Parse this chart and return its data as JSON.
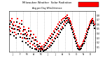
{
  "title": "Milwaukee Weather  Solar Radiation",
  "subtitle": "Avg per Day W/m2/minute",
  "background_color": "#ffffff",
  "plot_bg_color": "#ffffff",
  "grid_color": "#b0b0b0",
  "ylim": [
    0,
    0.9
  ],
  "xlim": [
    0,
    370
  ],
  "legend_color1": "#ff0000",
  "legend_color2": "#000000",
  "vgrid_positions": [
    30,
    60,
    90,
    120,
    150,
    180,
    210,
    240,
    270,
    300,
    330,
    360
  ],
  "yticks": [
    0.1,
    0.2,
    0.3,
    0.4,
    0.5,
    0.6,
    0.7,
    0.8
  ],
  "data_red_x": [
    3,
    6,
    8,
    12,
    15,
    18,
    21,
    24,
    28,
    32,
    36,
    38,
    42,
    45,
    49,
    52,
    55,
    58,
    62,
    65,
    67,
    70,
    73,
    76,
    80,
    83,
    86,
    90,
    92,
    95,
    99,
    102,
    106,
    109,
    112,
    115,
    118,
    122,
    125,
    128,
    132,
    135,
    138,
    141,
    145,
    148,
    152,
    155,
    158,
    162,
    165,
    168,
    172,
    175,
    178,
    182,
    185,
    188,
    192,
    195,
    198,
    202,
    205,
    208,
    212,
    215,
    218,
    222,
    225,
    228,
    232,
    234,
    238,
    241,
    244,
    247,
    250,
    254,
    256,
    260,
    262,
    266,
    268,
    272,
    274,
    278,
    280,
    284,
    286,
    290,
    292,
    296,
    298,
    302,
    305,
    308,
    312,
    315,
    318,
    322,
    325,
    328,
    332,
    335,
    338,
    342,
    345,
    348,
    352,
    355,
    358,
    362,
    365,
    368
  ],
  "data_red_y": [
    0.55,
    0.68,
    0.45,
    0.72,
    0.6,
    0.5,
    0.65,
    0.42,
    0.58,
    0.38,
    0.72,
    0.55,
    0.48,
    0.62,
    0.52,
    0.4,
    0.68,
    0.3,
    0.45,
    0.55,
    0.38,
    0.48,
    0.28,
    0.42,
    0.38,
    0.22,
    0.52,
    0.35,
    0.18,
    0.45,
    0.3,
    0.15,
    0.38,
    0.25,
    0.12,
    0.32,
    0.08,
    0.22,
    0.15,
    0.06,
    0.18,
    0.1,
    0.04,
    0.12,
    0.08,
    0.02,
    0.15,
    0.05,
    0.2,
    0.08,
    0.25,
    0.12,
    0.3,
    0.15,
    0.35,
    0.2,
    0.4,
    0.25,
    0.45,
    0.3,
    0.5,
    0.35,
    0.55,
    0.4,
    0.6,
    0.45,
    0.65,
    0.5,
    0.7,
    0.55,
    0.72,
    0.6,
    0.75,
    0.65,
    0.78,
    0.68,
    0.8,
    0.7,
    0.75,
    0.72,
    0.68,
    0.65,
    0.6,
    0.55,
    0.5,
    0.45,
    0.4,
    0.35,
    0.3,
    0.25,
    0.2,
    0.15,
    0.12,
    0.1,
    0.08,
    0.12,
    0.15,
    0.18,
    0.22,
    0.25,
    0.3,
    0.35,
    0.4,
    0.45,
    0.5,
    0.55,
    0.6,
    0.65,
    0.68,
    0.7,
    0.72,
    0.68,
    0.65,
    0.6
  ],
  "data_black_x": [
    1,
    4,
    7,
    10,
    14,
    17,
    20,
    23,
    26,
    30,
    34,
    37,
    40,
    44,
    47,
    50,
    54,
    57,
    60,
    64,
    66,
    69,
    72,
    75,
    78,
    82,
    85,
    88,
    91,
    94,
    98,
    101,
    104,
    108,
    111,
    114,
    117,
    120,
    124,
    127,
    130,
    134,
    137,
    140,
    144,
    147,
    150,
    154,
    157,
    160,
    164,
    167,
    170,
    174,
    177,
    180,
    184,
    187,
    190,
    194,
    197,
    200,
    204,
    207,
    210,
    214,
    217,
    220,
    224,
    227,
    230,
    233,
    237,
    240,
    243,
    246,
    249,
    252,
    255,
    258,
    261,
    265,
    267,
    271,
    273,
    277,
    279,
    283,
    285,
    289,
    291,
    295,
    297,
    301,
    304,
    307,
    311,
    314,
    317,
    321,
    324,
    327,
    331,
    334,
    337,
    341,
    344,
    347,
    351,
    354,
    357,
    361,
    364,
    367
  ],
  "data_black_y": [
    0.48,
    0.6,
    0.38,
    0.65,
    0.52,
    0.42,
    0.58,
    0.35,
    0.5,
    0.3,
    0.65,
    0.48,
    0.4,
    0.55,
    0.45,
    0.32,
    0.6,
    0.22,
    0.38,
    0.48,
    0.3,
    0.4,
    0.2,
    0.35,
    0.28,
    0.15,
    0.45,
    0.28,
    0.1,
    0.38,
    0.22,
    0.08,
    0.3,
    0.18,
    0.06,
    0.25,
    0.04,
    0.15,
    0.1,
    0.02,
    0.12,
    0.06,
    0.02,
    0.08,
    0.05,
    0.01,
    0.1,
    0.03,
    0.14,
    0.05,
    0.18,
    0.08,
    0.22,
    0.1,
    0.28,
    0.14,
    0.32,
    0.18,
    0.38,
    0.22,
    0.42,
    0.28,
    0.48,
    0.32,
    0.52,
    0.38,
    0.58,
    0.42,
    0.62,
    0.48,
    0.65,
    0.52,
    0.68,
    0.58,
    0.72,
    0.62,
    0.75,
    0.65,
    0.7,
    0.65,
    0.62,
    0.58,
    0.52,
    0.48,
    0.42,
    0.38,
    0.32,
    0.28,
    0.22,
    0.18,
    0.12,
    0.08,
    0.06,
    0.05,
    0.04,
    0.06,
    0.08,
    0.12,
    0.15,
    0.18,
    0.22,
    0.28,
    0.32,
    0.38,
    0.42,
    0.48,
    0.52,
    0.58,
    0.62,
    0.65,
    0.68,
    0.62,
    0.58,
    0.52
  ]
}
